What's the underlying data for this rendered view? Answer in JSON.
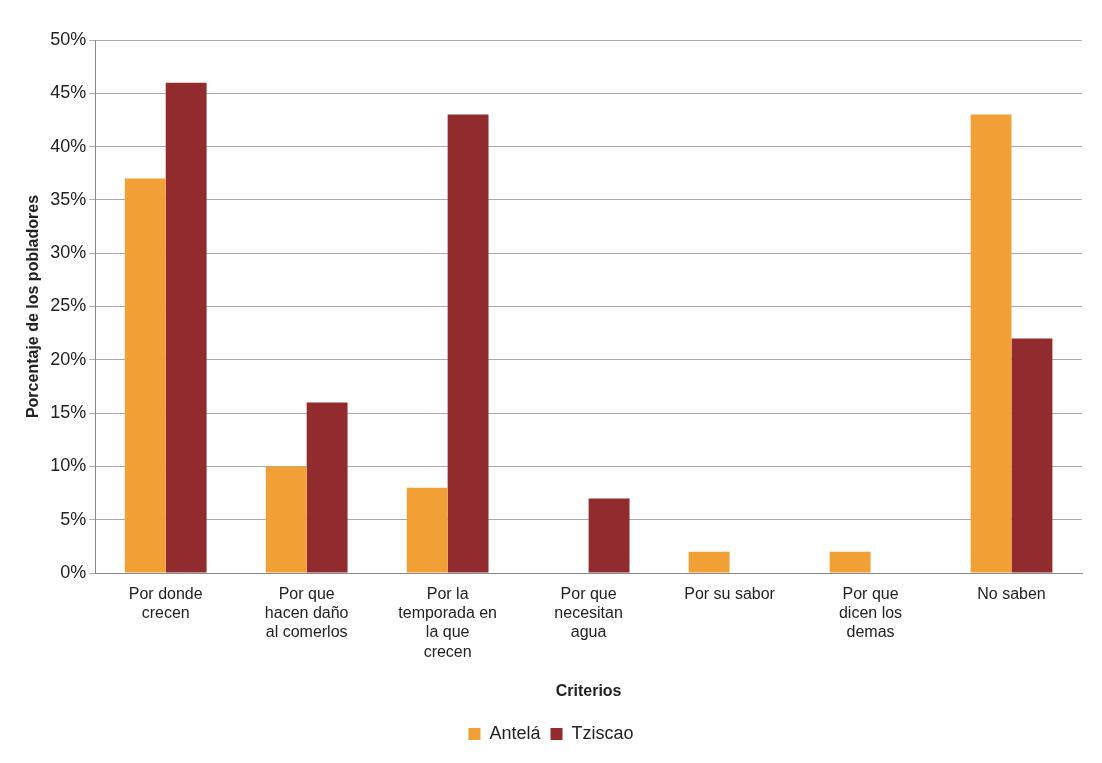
{
  "chart_data": {
    "type": "bar",
    "xlabel": "Criterios",
    "ylabel": "Porcentaje de los pobladores",
    "categories": [
      "Por donde crecen",
      "Por que hacen daño al comerlos",
      "Por la temporada en la que crecen",
      "Por que necesitan agua",
      "Por su sabor",
      "Por que dicen los demas",
      "No saben"
    ],
    "series": [
      {
        "name": "Antelá",
        "color": "#f0a035",
        "values": [
          37,
          10,
          8,
          0,
          2,
          2,
          43
        ]
      },
      {
        "name": "Tziscao",
        "color": "#922b2d",
        "values": [
          46,
          16,
          43,
          7,
          0,
          0,
          22
        ]
      }
    ],
    "ylim": [
      0,
      50
    ],
    "yticks": [
      {
        "value": 0,
        "label": "0%"
      },
      {
        "value": 5,
        "label": "5%"
      },
      {
        "value": 10,
        "label": "10%"
      },
      {
        "value": 15,
        "label": "15%"
      },
      {
        "value": 20,
        "label": "20%"
      },
      {
        "value": 25,
        "label": "25%"
      },
      {
        "value": 30,
        "label": "30%"
      },
      {
        "value": 35,
        "label": "35%"
      },
      {
        "value": 40,
        "label": "40%"
      },
      {
        "value": 45,
        "label": "45%"
      },
      {
        "value": 50,
        "label": "50%"
      }
    ],
    "grid": "y",
    "legend": "bottom"
  }
}
